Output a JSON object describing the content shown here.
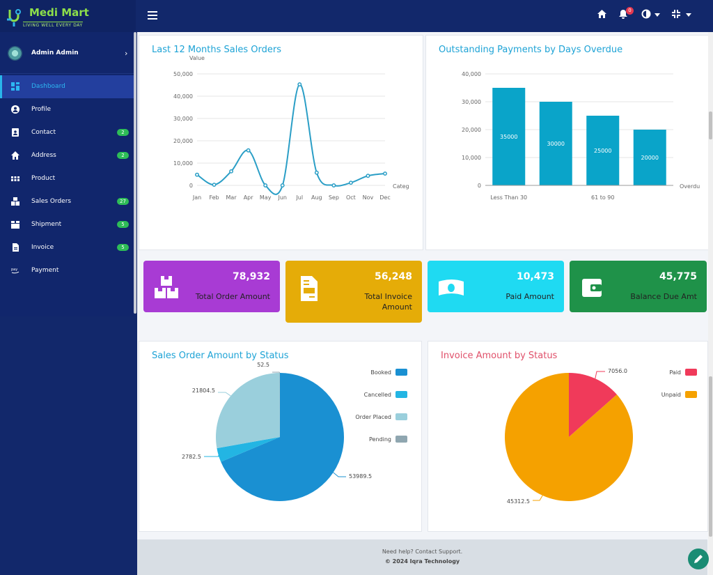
{
  "brand": {
    "name": "Medi Mart",
    "tagline": "LIVING WELL EVERY DAY"
  },
  "topbar": {
    "notification_count": "0"
  },
  "user": {
    "name": "Admin Admin"
  },
  "nav": [
    {
      "label": "Dashboard",
      "icon": "dashboard-icon",
      "badge": ""
    },
    {
      "label": "Profile",
      "icon": "user-icon",
      "badge": ""
    },
    {
      "label": "Contact",
      "icon": "contact-icon",
      "badge": "2"
    },
    {
      "label": "Address",
      "icon": "home-icon",
      "badge": "2"
    },
    {
      "label": "Product",
      "icon": "grid-icon",
      "badge": ""
    },
    {
      "label": "Sales Orders",
      "icon": "boxes-icon",
      "badge": "27"
    },
    {
      "label": "Shipment",
      "icon": "box-icon",
      "badge": "5"
    },
    {
      "label": "Invoice",
      "icon": "document-icon",
      "badge": "5"
    },
    {
      "label": "Payment",
      "icon": "pay-icon",
      "badge": ""
    }
  ],
  "stats": [
    {
      "value": "78,932",
      "label": "Total Order Amount",
      "color": "#a83bd4",
      "icon": "boxes-icon"
    },
    {
      "value": "56,248",
      "label": "Total Invoice Amount",
      "color": "#e5ac08",
      "icon": "invoice-icon"
    },
    {
      "value": "10,473",
      "label": "Paid Amount",
      "color": "#1fdaf2",
      "icon": "banknote-icon"
    },
    {
      "value": "45,775",
      "label": "Balance Due Amt",
      "color": "#1f9249",
      "icon": "wallet-icon"
    }
  ],
  "footer": {
    "help": "Need help? Contact Support.",
    "copyright": "© 2024 Iqra Technology"
  },
  "chart_data": [
    {
      "type": "line",
      "title": "Last 12 Months Sales Orders",
      "ylabel": "Value",
      "xlabel": "Categ",
      "categories": [
        "Jan",
        "Feb",
        "Mar",
        "Apr",
        "May",
        "Jun",
        "Jul",
        "Aug",
        "Sep",
        "Oct",
        "Nov",
        "Dec"
      ],
      "values": [
        4800,
        300,
        6300,
        15700,
        0,
        0,
        45300,
        5700,
        0,
        1200,
        4300,
        5300
      ],
      "yticks": [
        "0",
        "10,000",
        "20,000",
        "30,000",
        "40,000",
        "50,000"
      ],
      "ylim": [
        0,
        50000
      ],
      "color": "#2a9ec6"
    },
    {
      "type": "bar",
      "title": "Outstanding Payments by Days Overdue",
      "xlabel": "Overdu",
      "categories": [
        "Less Than 30",
        "",
        "61 to 90",
        ""
      ],
      "values": [
        35000,
        30000,
        25000,
        20000
      ],
      "data_labels": [
        "35000",
        "30000",
        "25000",
        "20000"
      ],
      "yticks": [
        "0",
        "10,000",
        "20,000",
        "30,000",
        "40,000"
      ],
      "ylim": [
        0,
        40000
      ],
      "color": "#0aa4c9"
    },
    {
      "type": "pie",
      "title": "Sales Order Amount by Status",
      "slices": [
        {
          "label": "Booked",
          "value": 53989.5,
          "value_label": "53989.5",
          "color": "#1a90d2"
        },
        {
          "label": "Cancelled",
          "value": 2782.5,
          "value_label": "2782.5",
          "color": "#23b5e3"
        },
        {
          "label": "Order Placed",
          "value": 21804.5,
          "value_label": "21804.5",
          "color": "#9acfdc"
        },
        {
          "label": "Pending",
          "value": 52.5,
          "value_label": "52.5",
          "color": "#8fa6b0"
        }
      ]
    },
    {
      "type": "pie",
      "title": "Invoice Amount by Status",
      "slices": [
        {
          "label": "Paid",
          "value": 7056.0,
          "value_label": "7056.0",
          "color": "#f03a5a"
        },
        {
          "label": "Unpaid",
          "value": 45312.5,
          "value_label": "45312.5",
          "color": "#f5a100"
        }
      ]
    }
  ]
}
